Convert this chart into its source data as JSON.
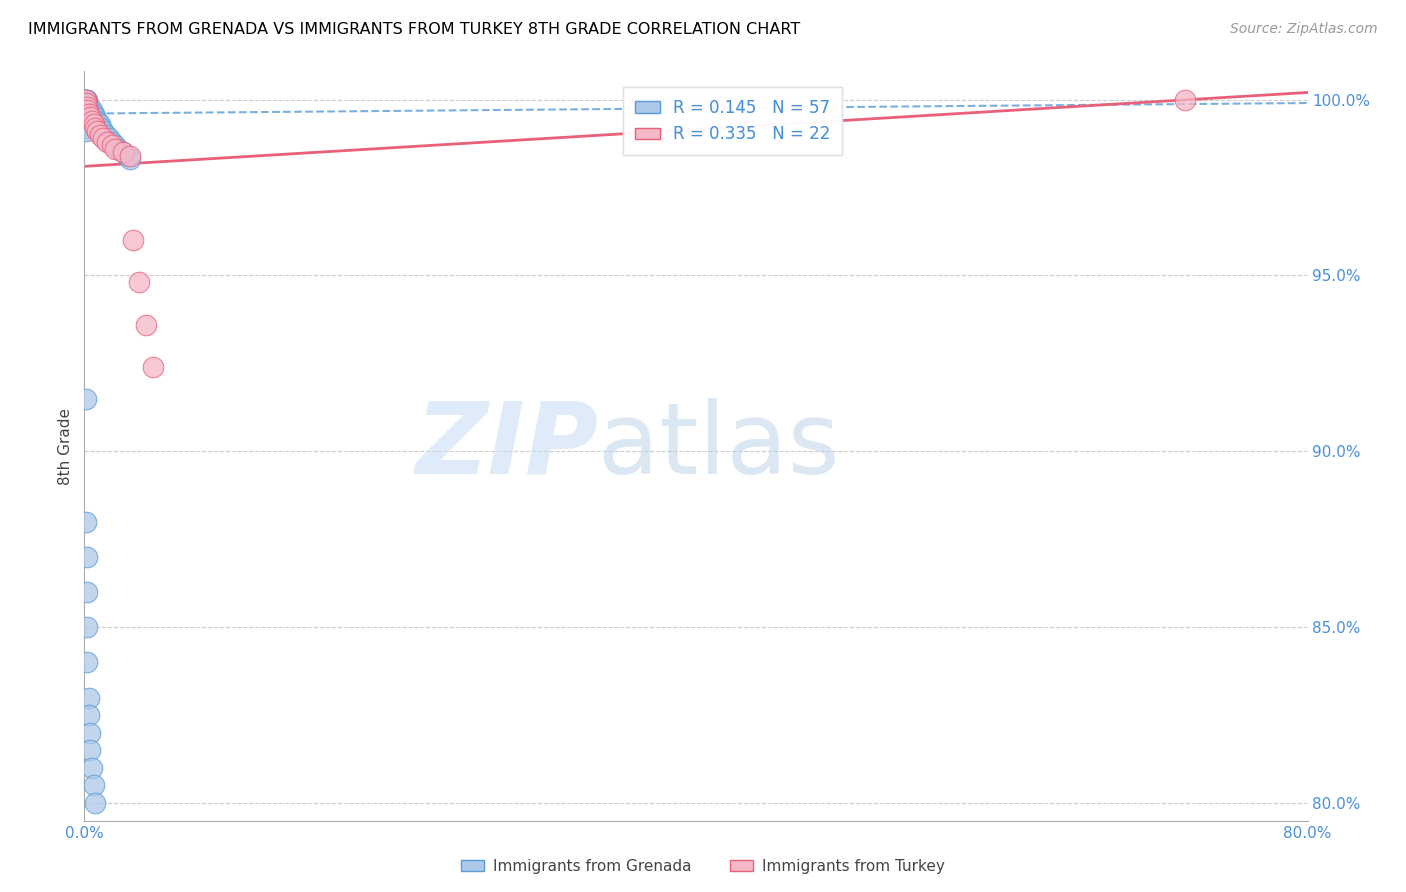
{
  "title": "IMMIGRANTS FROM GRENADA VS IMMIGRANTS FROM TURKEY 8TH GRADE CORRELATION CHART",
  "source": "Source: ZipAtlas.com",
  "ylabel": "8th Grade",
  "xlim": [
    0.0,
    0.8
  ],
  "ylim": [
    0.795,
    1.008
  ],
  "xticks": [
    0.0,
    0.1,
    0.2,
    0.3,
    0.4,
    0.5,
    0.6,
    0.7,
    0.8
  ],
  "xticklabels": [
    "0.0%",
    "",
    "",
    "",
    "",
    "",
    "",
    "",
    "80.0%"
  ],
  "yticks": [
    0.8,
    0.85,
    0.9,
    0.95,
    1.0
  ],
  "yticklabels": [
    "80.0%",
    "85.0%",
    "90.0%",
    "95.0%",
    "100.0%"
  ],
  "grenada_color": "#adc8e8",
  "turkey_color": "#f5b8c8",
  "grenada_edge_color": "#5b9bd5",
  "turkey_edge_color": "#e8607a",
  "grenada_line_color": "#7ab0e0",
  "turkey_line_color": "#e8607a",
  "R_grenada": 0.145,
  "N_grenada": 57,
  "R_turkey": 0.335,
  "N_turkey": 22,
  "legend_label_grenada": "Immigrants from Grenada",
  "legend_label_turkey": "Immigrants from Turkey",
  "watermark_zip": "ZIP",
  "watermark_atlas": "atlas",
  "watermark_color_zip": "#ccdff0",
  "watermark_color_atlas": "#b8d4ec",
  "tick_color": "#4a90d9",
  "grenada_x": [
    0.002,
    0.002,
    0.002,
    0.003,
    0.003,
    0.004,
    0.004,
    0.005,
    0.005,
    0.006,
    0.006,
    0.007,
    0.007,
    0.008,
    0.009,
    0.01,
    0.011,
    0.012,
    0.013,
    0.014,
    0.016,
    0.018,
    0.02,
    0.022,
    0.025,
    0.028,
    0.03,
    0.001,
    0.001,
    0.001,
    0.001,
    0.001,
    0.001,
    0.001,
    0.001,
    0.001,
    0.001,
    0.001,
    0.001,
    0.001,
    0.001,
    0.001,
    0.001,
    0.001,
    0.001,
    0.001,
    0.002,
    0.002,
    0.002,
    0.002,
    0.003,
    0.003,
    0.004,
    0.004,
    0.005,
    0.006,
    0.007
  ],
  "grenada_y": [
    1.0,
    0.999,
    0.999,
    0.998,
    0.998,
    0.997,
    0.997,
    0.997,
    0.996,
    0.996,
    0.995,
    0.995,
    0.994,
    0.994,
    0.993,
    0.993,
    0.992,
    0.991,
    0.99,
    0.99,
    0.989,
    0.988,
    0.987,
    0.986,
    0.985,
    0.984,
    0.983,
    1.0,
    1.0,
    1.0,
    0.999,
    0.999,
    0.998,
    0.998,
    0.997,
    0.997,
    0.996,
    0.996,
    0.995,
    0.995,
    0.994,
    0.993,
    0.992,
    0.991,
    0.915,
    0.88,
    0.87,
    0.86,
    0.85,
    0.84,
    0.83,
    0.825,
    0.82,
    0.815,
    0.81,
    0.805,
    0.8
  ],
  "turkey_x": [
    0.001,
    0.001,
    0.002,
    0.002,
    0.003,
    0.004,
    0.005,
    0.006,
    0.007,
    0.008,
    0.01,
    0.012,
    0.015,
    0.018,
    0.02,
    0.025,
    0.03,
    0.032,
    0.036,
    0.04,
    0.045,
    0.72
  ],
  "turkey_y": [
    1.0,
    0.999,
    0.998,
    0.997,
    0.996,
    0.995,
    0.994,
    0.993,
    0.992,
    0.991,
    0.99,
    0.989,
    0.988,
    0.987,
    0.986,
    0.985,
    0.984,
    0.96,
    0.948,
    0.936,
    0.924,
    1.0
  ],
  "grenada_trend_x": [
    0.0,
    0.8
  ],
  "grenada_trend_y": [
    0.996,
    0.999
  ],
  "turkey_trend_x": [
    0.0,
    0.8
  ],
  "turkey_trend_y": [
    0.981,
    1.002
  ]
}
